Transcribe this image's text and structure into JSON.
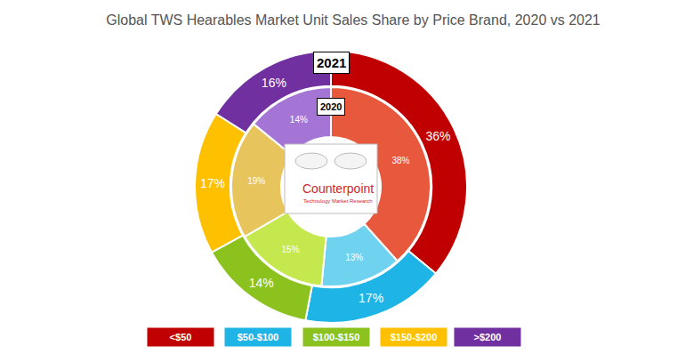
{
  "chart_data": {
    "type": "pie",
    "title": "Global TWS Hearables Market Unit Sales Share by Price Brand, 2020 vs 2021",
    "categories": [
      "<$50",
      "$50-$100",
      "$100-$150",
      "$150-$200",
      ">$200"
    ],
    "data_labels": true,
    "legend": "bottom",
    "series": [
      {
        "name": "2021",
        "values": [
          36,
          17,
          14,
          17,
          16
        ],
        "value_labels": [
          "36%",
          "17%",
          "14%",
          "17%",
          "16%"
        ],
        "colors": [
          "#c00000",
          "#1eb4e6",
          "#8cc21e",
          "#ffc000",
          "#7030a0"
        ]
      },
      {
        "name": "2020",
        "values": [
          38,
          13,
          15,
          19,
          14
        ],
        "value_labels": [
          "38%",
          "13%",
          "15%",
          "19%",
          "14%"
        ],
        "colors": [
          "#e8583c",
          "#6fd3f0",
          "#c5e84e",
          "#e8c45c",
          "#a575d6"
        ]
      }
    ],
    "annotations": [
      "Counterpoint",
      "Technology Market Research"
    ]
  }
}
